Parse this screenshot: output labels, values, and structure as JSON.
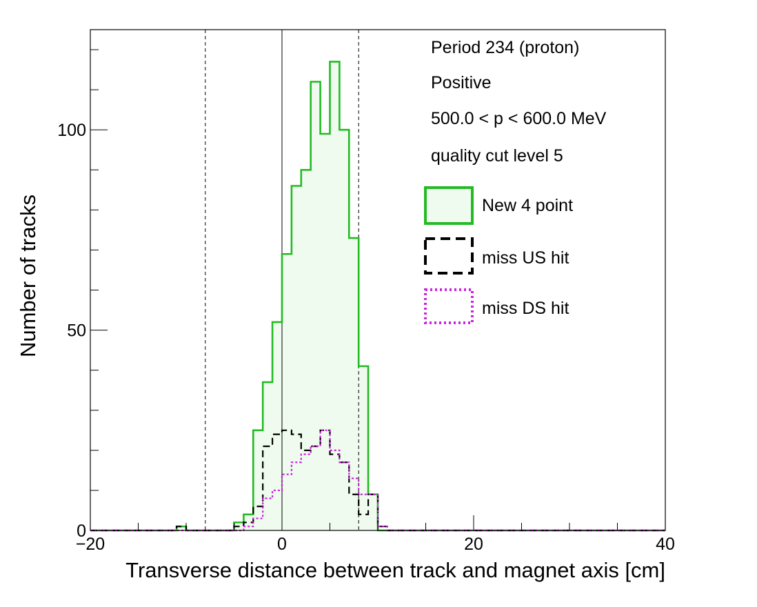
{
  "chart_data": {
    "type": "histogram",
    "xlabel": "Transverse distance between track and magnet axis [cm]",
    "ylabel": "Number of tracks",
    "xlim": [
      -20,
      40
    ],
    "ylim": [
      0,
      125
    ],
    "x_ticks": [
      -20,
      0,
      20,
      40
    ],
    "y_ticks": [
      0,
      50,
      100
    ],
    "bin_width": 1,
    "bin_start": -20,
    "vertical_lines": [
      {
        "x": -8,
        "style": "dashed"
      },
      {
        "x": 0,
        "style": "solid"
      },
      {
        "x": 8,
        "style": "dashed"
      }
    ],
    "annotations": [
      "Period 234 (proton)",
      "Positive",
      "500.0 < p < 600.0 MeV",
      "quality cut level 5"
    ],
    "legend": {
      "placement": "top-right"
    },
    "series": [
      {
        "name": "New 4 point",
        "color": "#22bb22",
        "fill": "#eefbee",
        "style": "solid",
        "values": [
          0,
          0,
          0,
          0,
          0,
          0,
          0,
          0,
          0,
          1,
          0,
          0,
          0,
          0,
          0,
          2,
          4,
          25,
          37,
          52,
          69,
          86,
          90,
          112,
          99,
          117,
          100,
          73,
          41,
          9,
          0,
          0,
          0,
          0,
          0,
          0,
          0,
          0,
          0,
          0,
          0,
          0,
          0,
          0,
          0,
          0,
          0,
          0,
          0,
          0,
          0,
          0,
          0,
          0,
          0,
          0,
          0,
          0,
          0,
          0
        ]
      },
      {
        "name": "miss US hit",
        "color": "#000000",
        "style": "dashed",
        "values": [
          0,
          0,
          0,
          0,
          0,
          0,
          0,
          0,
          0,
          1,
          0,
          0,
          0,
          0,
          0,
          1,
          2,
          6,
          21,
          24,
          25,
          24,
          20,
          21,
          25,
          19,
          17,
          9,
          4,
          9,
          1,
          0,
          0,
          0,
          0,
          0,
          0,
          0,
          0,
          0,
          0,
          0,
          0,
          0,
          0,
          0,
          0,
          0,
          0,
          0,
          0,
          0,
          0,
          0,
          0,
          0,
          0,
          0,
          0,
          0
        ]
      },
      {
        "name": "miss DS hit",
        "color": "#cc22dd",
        "style": "dotted",
        "values": [
          0,
          0,
          0,
          0,
          0,
          0,
          0,
          0,
          0,
          0,
          0,
          0,
          0,
          0,
          0,
          0,
          1,
          3,
          8,
          10,
          14,
          17,
          19,
          21,
          25,
          20,
          17,
          13,
          9,
          9,
          1,
          0,
          0,
          0,
          0,
          0,
          0,
          0,
          0,
          0,
          0,
          0,
          0,
          0,
          0,
          0,
          0,
          0,
          0,
          0,
          0,
          0,
          0,
          0,
          0,
          0,
          0,
          0,
          0,
          0
        ]
      }
    ]
  }
}
